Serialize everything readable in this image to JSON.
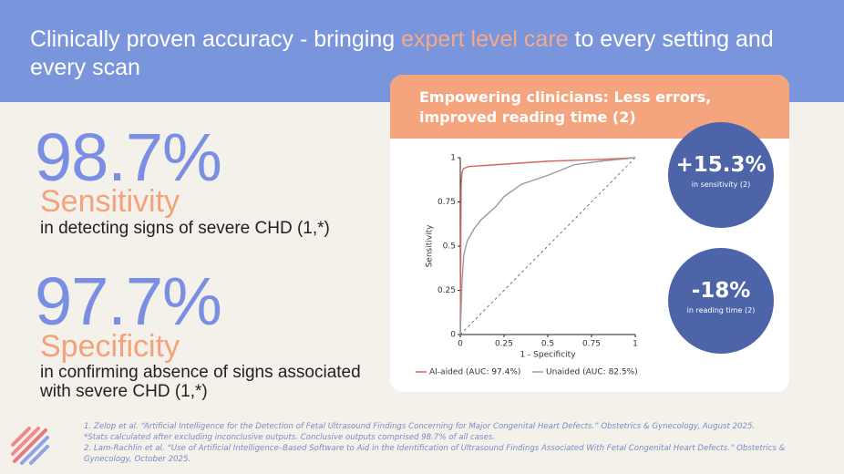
{
  "header": {
    "title_start": "Clinically proven accuracy - bringing ",
    "title_highlight": "expert level care",
    "title_end": " to every setting and every scan"
  },
  "stats": [
    {
      "value": "98.7%",
      "metric": "Sensitivity",
      "description": "in detecting signs of severe CHD (1,*)"
    },
    {
      "value": "97.7%",
      "metric": "Specificity",
      "description": "in confirming absence of signs associated with  severe CHD (1,*)"
    }
  ],
  "panel": {
    "title": "Empowering clinicians: Less errors, improved reading time (2)",
    "callouts": [
      {
        "value": "+15.3%",
        "label": "in sensitivity (2)"
      },
      {
        "value": "-18%",
        "label": "in reading time (2)"
      }
    ]
  },
  "chart_data": {
    "type": "line",
    "xlabel": "1 - Specificity",
    "ylabel": "Sensitivity",
    "xlim": [
      0,
      1
    ],
    "ylim": [
      0,
      1
    ],
    "xticks": [
      0,
      0.25,
      0.5,
      0.75,
      1
    ],
    "yticks": [
      0,
      0.25,
      0.5,
      0.75,
      1
    ],
    "series": [
      {
        "name": "AI-aided  (AUC: 97.4%)",
        "color": "#d9645c",
        "x": [
          0,
          0.005,
          0.01,
          0.02,
          0.05,
          0.2,
          0.5,
          0.8,
          1
        ],
        "values": [
          0,
          0.85,
          0.92,
          0.94,
          0.95,
          0.96,
          0.98,
          0.99,
          1
        ]
      },
      {
        "name": "Unaided  (AUC: 82.5%)",
        "color": "#9a9a9a",
        "x": [
          0,
          0.01,
          0.02,
          0.04,
          0.08,
          0.12,
          0.2,
          0.25,
          0.35,
          0.5,
          0.65,
          0.8,
          1
        ],
        "values": [
          0,
          0.3,
          0.45,
          0.53,
          0.6,
          0.65,
          0.72,
          0.78,
          0.85,
          0.9,
          0.96,
          0.98,
          1
        ]
      }
    ]
  },
  "footnotes": [
    "1. Zelop et al. “Artificial Intelligence for the Detection of Fetal Ultrasound Findings Concerning for Major Congenital Heart Defects.” Obstetrics & Gynecology, August 2025.",
    "*Stats calculated after excluding inconclusive outputs. Conclusive outputs comprised 98.7% of all cases.",
    "2. Lam-Rachlin et al. “Use of Artificial Intelligence–Based Software to Aid in the Identification of Ultrasound Findings Associated With Fetal Congenital Heart Defects.” Obstetrics & Gynecology, October 2025."
  ]
}
